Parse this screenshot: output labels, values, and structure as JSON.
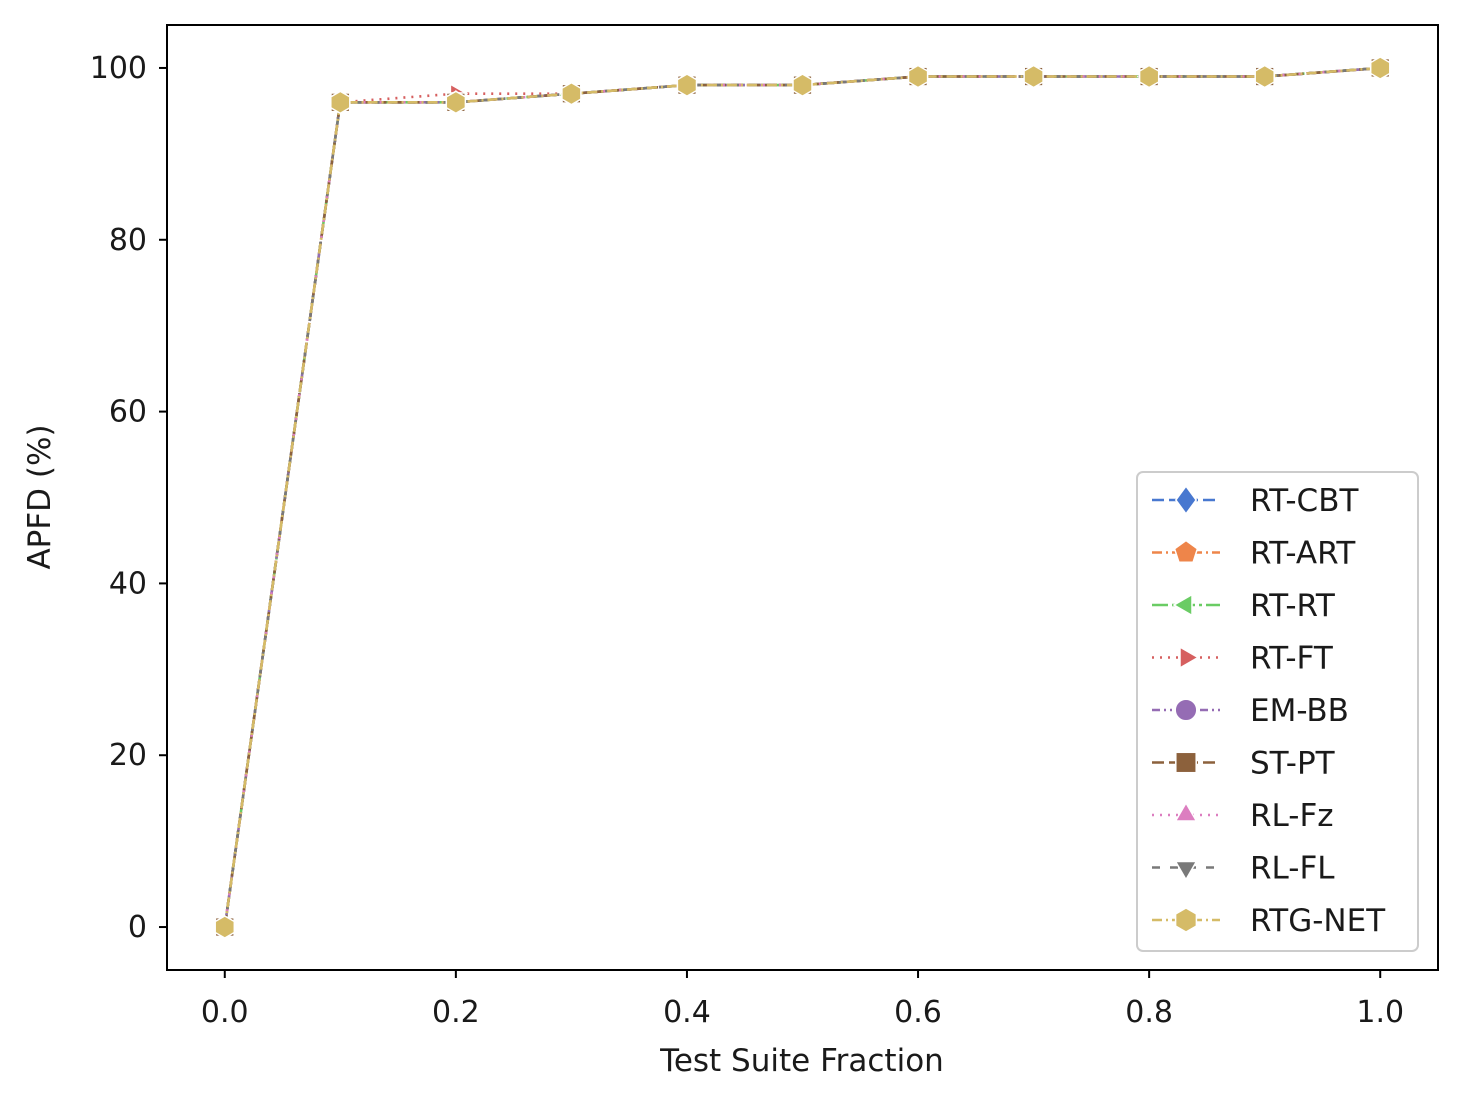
{
  "chart_data": {
    "type": "line",
    "xlabel": "Test Suite Fraction",
    "ylabel": "APFD (%)",
    "xlim": [
      -0.05,
      1.05
    ],
    "ylim": [
      -5,
      105
    ],
    "xticks": [
      0.0,
      0.2,
      0.4,
      0.6,
      0.8,
      1.0
    ],
    "xtick_labels": [
      "0.0",
      "0.2",
      "0.4",
      "0.6",
      "0.8",
      "1.0"
    ],
    "yticks": [
      0,
      20,
      40,
      60,
      80,
      100
    ],
    "ytick_labels": [
      "0",
      "20",
      "40",
      "60",
      "80",
      "100"
    ],
    "grid": false,
    "legend_position": "bottom-right",
    "x": [
      0.0,
      0.1,
      0.2,
      0.3,
      0.4,
      0.5,
      0.6,
      0.7,
      0.8,
      0.9,
      1.0
    ],
    "series": [
      {
        "name": "RT-CBT",
        "color": "#4878d0",
        "dash": "dash",
        "marker": "diamond",
        "values": [
          0,
          96,
          96,
          97,
          98,
          98,
          99,
          99,
          99,
          99,
          100
        ]
      },
      {
        "name": "RT-ART",
        "color": "#ee854a",
        "dash": "dashdot",
        "marker": "pentagon",
        "values": [
          0,
          96,
          96,
          97,
          98,
          98,
          99,
          99,
          99,
          99,
          100
        ]
      },
      {
        "name": "RT-RT",
        "color": "#6acc64",
        "dash": "longdashdot",
        "marker": "triangle-left",
        "values": [
          0,
          96,
          96,
          97,
          98,
          98,
          99,
          99,
          99,
          99,
          100
        ]
      },
      {
        "name": "RT-FT",
        "color": "#d65f5f",
        "dash": "dot",
        "marker": "triangle-right",
        "values": [
          0,
          96,
          97,
          97,
          98,
          98,
          99,
          99,
          99,
          99,
          100
        ]
      },
      {
        "name": "EM-BB",
        "color": "#956cb4",
        "dash": "dashdotdot",
        "marker": "circle",
        "values": [
          0,
          96,
          96,
          97,
          98,
          98,
          99,
          99,
          99,
          99,
          100
        ]
      },
      {
        "name": "ST-PT",
        "color": "#8c613c",
        "dash": "dash",
        "marker": "square",
        "values": [
          0,
          96,
          96,
          97,
          98,
          98,
          99,
          99,
          99,
          99,
          100
        ]
      },
      {
        "name": "RL-Fz",
        "color": "#dc7ec0",
        "dash": "dot",
        "marker": "triangle-up",
        "values": [
          0,
          96,
          96,
          97,
          98,
          98,
          99,
          99,
          99,
          99,
          100
        ]
      },
      {
        "name": "RL-FL",
        "color": "#797979",
        "dash": "sparsedash",
        "marker": "triangle-down",
        "values": [
          0,
          96,
          96,
          97,
          98,
          98,
          99,
          99,
          99,
          99,
          100
        ]
      },
      {
        "name": "RTG-NET",
        "color": "#d5bb67",
        "dash": "dashdot",
        "marker": "hexagon",
        "values": [
          0,
          96,
          96,
          97,
          98,
          98,
          99,
          99,
          99,
          99,
          100
        ]
      }
    ]
  }
}
